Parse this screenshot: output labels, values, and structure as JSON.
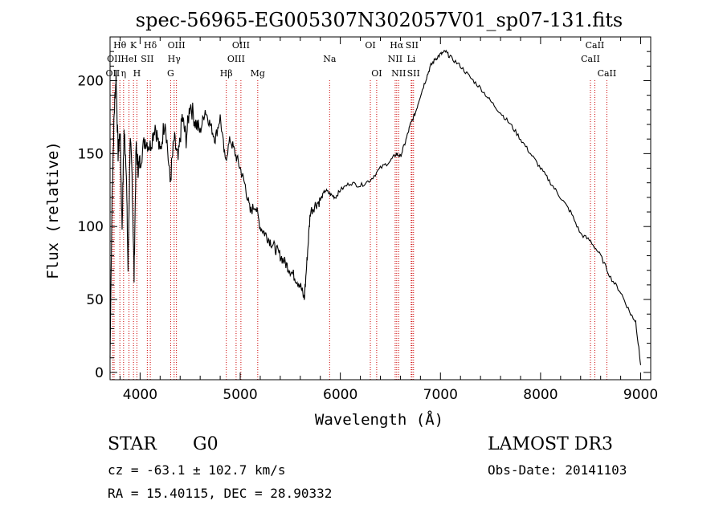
{
  "chart_data": {
    "type": "line",
    "title": "spec-56965-EG005307N302057V01_sp07-131.fits",
    "xlabel": "Wavelength (Å)",
    "ylabel": "Flux (relative)",
    "xlim": [
      3700,
      9100
    ],
    "ylim": [
      -5,
      230
    ],
    "xticks": [
      4000,
      5000,
      6000,
      7000,
      8000,
      9000
    ],
    "yticks": [
      0,
      50,
      100,
      150,
      200
    ],
    "grid": false,
    "series": [
      {
        "name": "spectrum",
        "x": [
          3700,
          3720,
          3740,
          3760,
          3780,
          3800,
          3820,
          3840,
          3860,
          3880,
          3900,
          3920,
          3940,
          3960,
          3980,
          4000,
          4050,
          4100,
          4150,
          4200,
          4250,
          4300,
          4340,
          4380,
          4420,
          4460,
          4500,
          4550,
          4600,
          4650,
          4700,
          4750,
          4800,
          4850,
          4900,
          4950,
          5000,
          5050,
          5100,
          5150,
          5200,
          5250,
          5300,
          5350,
          5400,
          5450,
          5500,
          5550,
          5600,
          5640,
          5670,
          5700,
          5750,
          5800,
          5850,
          5900,
          5950,
          6000,
          6100,
          6200,
          6300,
          6400,
          6500,
          6560,
          6600,
          6650,
          6700,
          6750,
          6800,
          6850,
          6900,
          6950,
          7000,
          7050,
          7100,
          7200,
          7300,
          7400,
          7500,
          7600,
          7700,
          7800,
          7900,
          8000,
          8100,
          8200,
          8300,
          8400,
          8500,
          8600,
          8700,
          8800,
          8900,
          8950,
          9000
        ],
        "y": [
          10,
          120,
          175,
          205,
          150,
          165,
          100,
          165,
          145,
          70,
          160,
          135,
          65,
          155,
          140,
          145,
          160,
          155,
          170,
          150,
          175,
          130,
          160,
          145,
          175,
          160,
          185,
          172,
          165,
          180,
          170,
          160,
          175,
          145,
          160,
          150,
          140,
          128,
          110,
          115,
          100,
          95,
          90,
          85,
          80,
          75,
          70,
          65,
          60,
          50,
          80,
          110,
          115,
          118,
          125,
          122,
          120,
          125,
          130,
          128,
          132,
          140,
          145,
          150,
          148,
          158,
          170,
          178,
          190,
          200,
          210,
          215,
          218,
          220,
          216,
          210,
          202,
          195,
          186,
          178,
          170,
          160,
          150,
          140,
          130,
          120,
          110,
          95,
          90,
          80,
          65,
          55,
          40,
          35,
          5
        ]
      }
    ],
    "spectral_lines": [
      {
        "label": "OII",
        "wavelength": 3727,
        "row": 2
      },
      {
        "label": "Hθ",
        "wavelength": 3798,
        "row": 0
      },
      {
        "label": "OII",
        "wavelength": 3740,
        "row": 1
      },
      {
        "label": "HeI",
        "wavelength": 3889,
        "row": 1
      },
      {
        "label": "K",
        "wavelength": 3934,
        "row": 0
      },
      {
        "label": "η",
        "wavelength": 3835,
        "row": 2
      },
      {
        "label": "H",
        "wavelength": 3968,
        "row": 2
      },
      {
        "label": "SII",
        "wavelength": 4072,
        "row": 1
      },
      {
        "label": "Hδ",
        "wavelength": 4102,
        "row": 0
      },
      {
        "label": "OIII",
        "wavelength": 4363,
        "row": 0
      },
      {
        "label": "Hγ",
        "wavelength": 4340,
        "row": 1
      },
      {
        "label": "G",
        "wavelength": 4305,
        "row": 2
      },
      {
        "label": "Hβ",
        "wavelength": 4861,
        "row": 2
      },
      {
        "label": "OIII",
        "wavelength": 4959,
        "row": 1
      },
      {
        "label": "OIII",
        "wavelength": 5007,
        "row": 0
      },
      {
        "label": "Mg",
        "wavelength": 5175,
        "row": 2
      },
      {
        "label": "Na",
        "wavelength": 5893,
        "row": 1
      },
      {
        "label": "OI",
        "wavelength": 6300,
        "row": 0
      },
      {
        "label": "OI",
        "wavelength": 6363,
        "row": 2
      },
      {
        "label": "Hα",
        "wavelength": 6563,
        "row": 0
      },
      {
        "label": "NII",
        "wavelength": 6548,
        "row": 1
      },
      {
        "label": "NII",
        "wavelength": 6583,
        "row": 2
      },
      {
        "label": "SII",
        "wavelength": 6716,
        "row": 0
      },
      {
        "label": "Li",
        "wavelength": 6708,
        "row": 1
      },
      {
        "label": "SII",
        "wavelength": 6731,
        "row": 2
      },
      {
        "label": "CaII",
        "wavelength": 8542,
        "row": 0
      },
      {
        "label": "CaII",
        "wavelength": 8498,
        "row": 1
      },
      {
        "label": "CaII",
        "wavelength": 8662,
        "row": 2
      }
    ]
  },
  "info": {
    "object_class": "STAR",
    "subclass": "G0",
    "survey": "LAMOST DR3",
    "redshift": "cz = -63.1 ± 102.7 km/s",
    "obs_date": "Obs-Date: 20141103",
    "coords": "RA =  15.40115, DEC =  28.90332"
  },
  "colors": {
    "line": "#000000",
    "marker": "#cc0000",
    "axes": "#000000"
  }
}
